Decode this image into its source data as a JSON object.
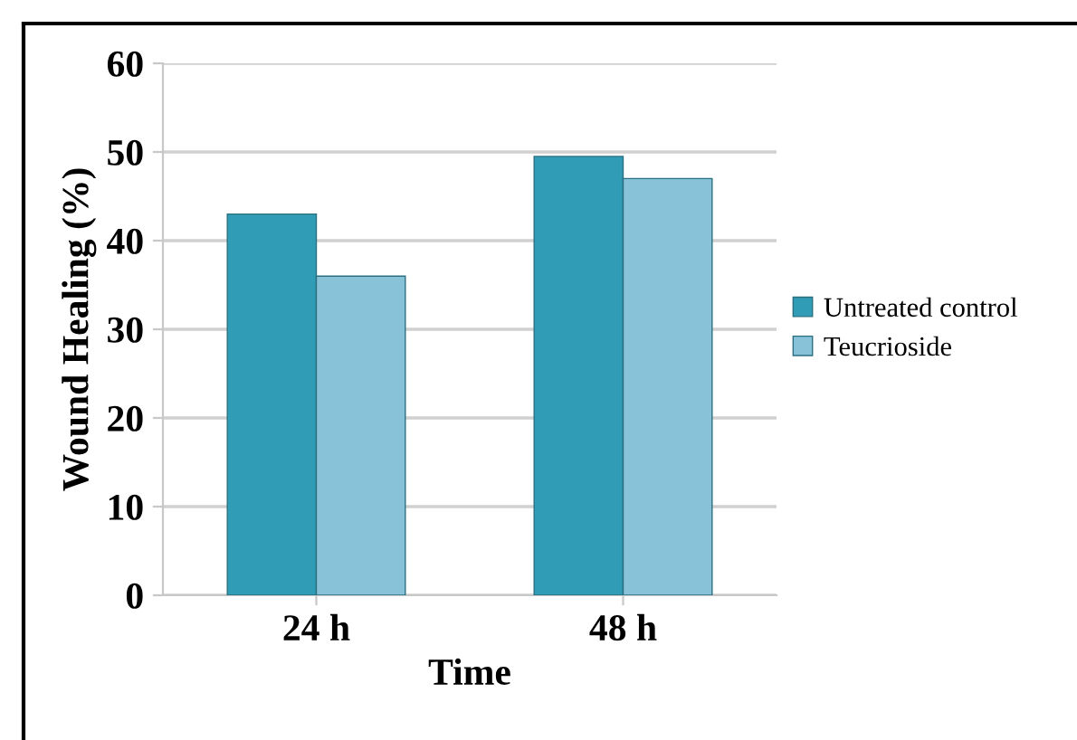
{
  "chart_data": {
    "type": "bar",
    "xlabel": "Time",
    "ylabel": "Wound Healing (%)",
    "categories": [
      "24 h",
      "48 h"
    ],
    "series": [
      {
        "name": "Untreated control",
        "color": "#319cb6",
        "values": [
          43,
          49.5
        ]
      },
      {
        "name": "Teucrioside",
        "color": "#87c2d8",
        "values": [
          36,
          47
        ]
      }
    ],
    "ylim": [
      0,
      60
    ],
    "yticks": [
      0,
      10,
      20,
      30,
      40,
      50,
      60
    ],
    "grid": "y",
    "legend": "right"
  }
}
